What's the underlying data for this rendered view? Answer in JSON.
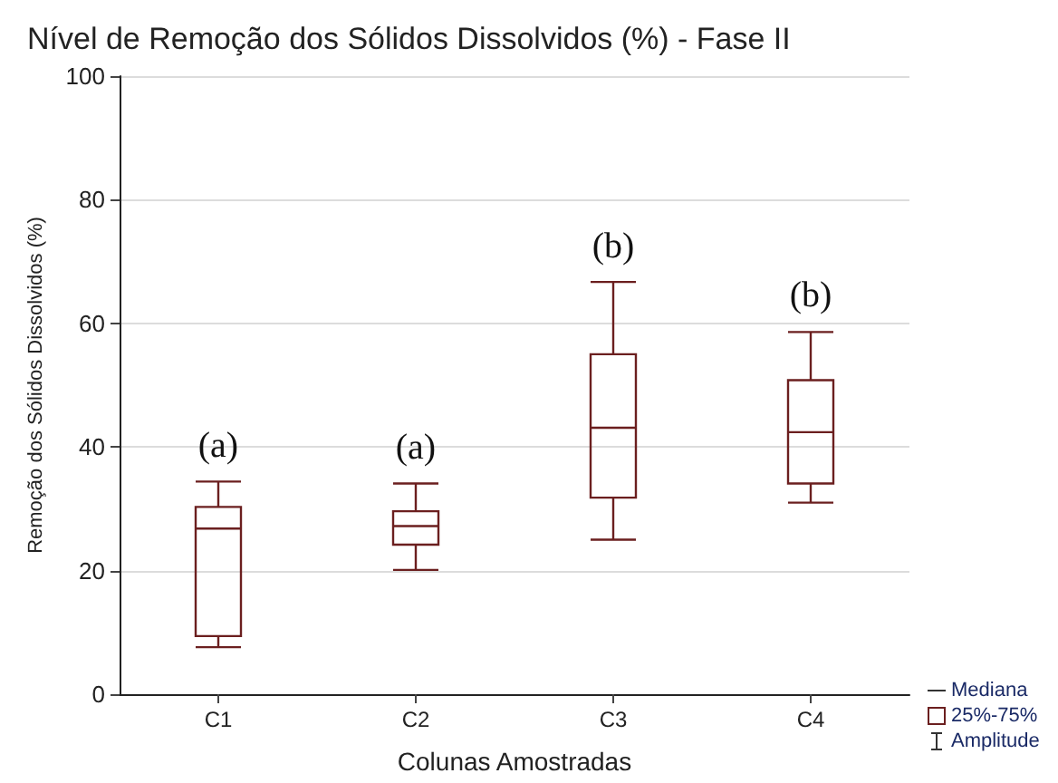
{
  "chart_data": {
    "type": "box",
    "title": "Nível de Remoção dos Sólidos Dissolvidos (%) - Fase II",
    "xlabel": "Colunas Amostradas",
    "ylabel": "Remoção dos Sólidos Dissolvidos (%)",
    "categories": [
      "C1",
      "C2",
      "C3",
      "C4"
    ],
    "boxes": [
      {
        "low": 7.6,
        "q1": 9.4,
        "median": 26.8,
        "q3": 30.3,
        "high": 34.4
      },
      {
        "low": 20.1,
        "q1": 24.2,
        "median": 27.2,
        "q3": 29.6,
        "high": 34.1
      },
      {
        "low": 25,
        "q1": 31.8,
        "median": 43.1,
        "q3": 55,
        "high": 66.7
      },
      {
        "low": 31,
        "q1": 34.1,
        "median": 42.4,
        "q3": 50.8,
        "high": 58.6
      }
    ],
    "color": "#6b1f1f",
    "ylim": [
      0,
      100
    ],
    "yticks": [
      0,
      20,
      40,
      60,
      80,
      100
    ],
    "grid": "y",
    "annotations": [
      "(a)",
      "(a)",
      "(b)",
      "(b)",
      "Mediana",
      "25%-75%",
      "Amplitude"
    ]
  }
}
